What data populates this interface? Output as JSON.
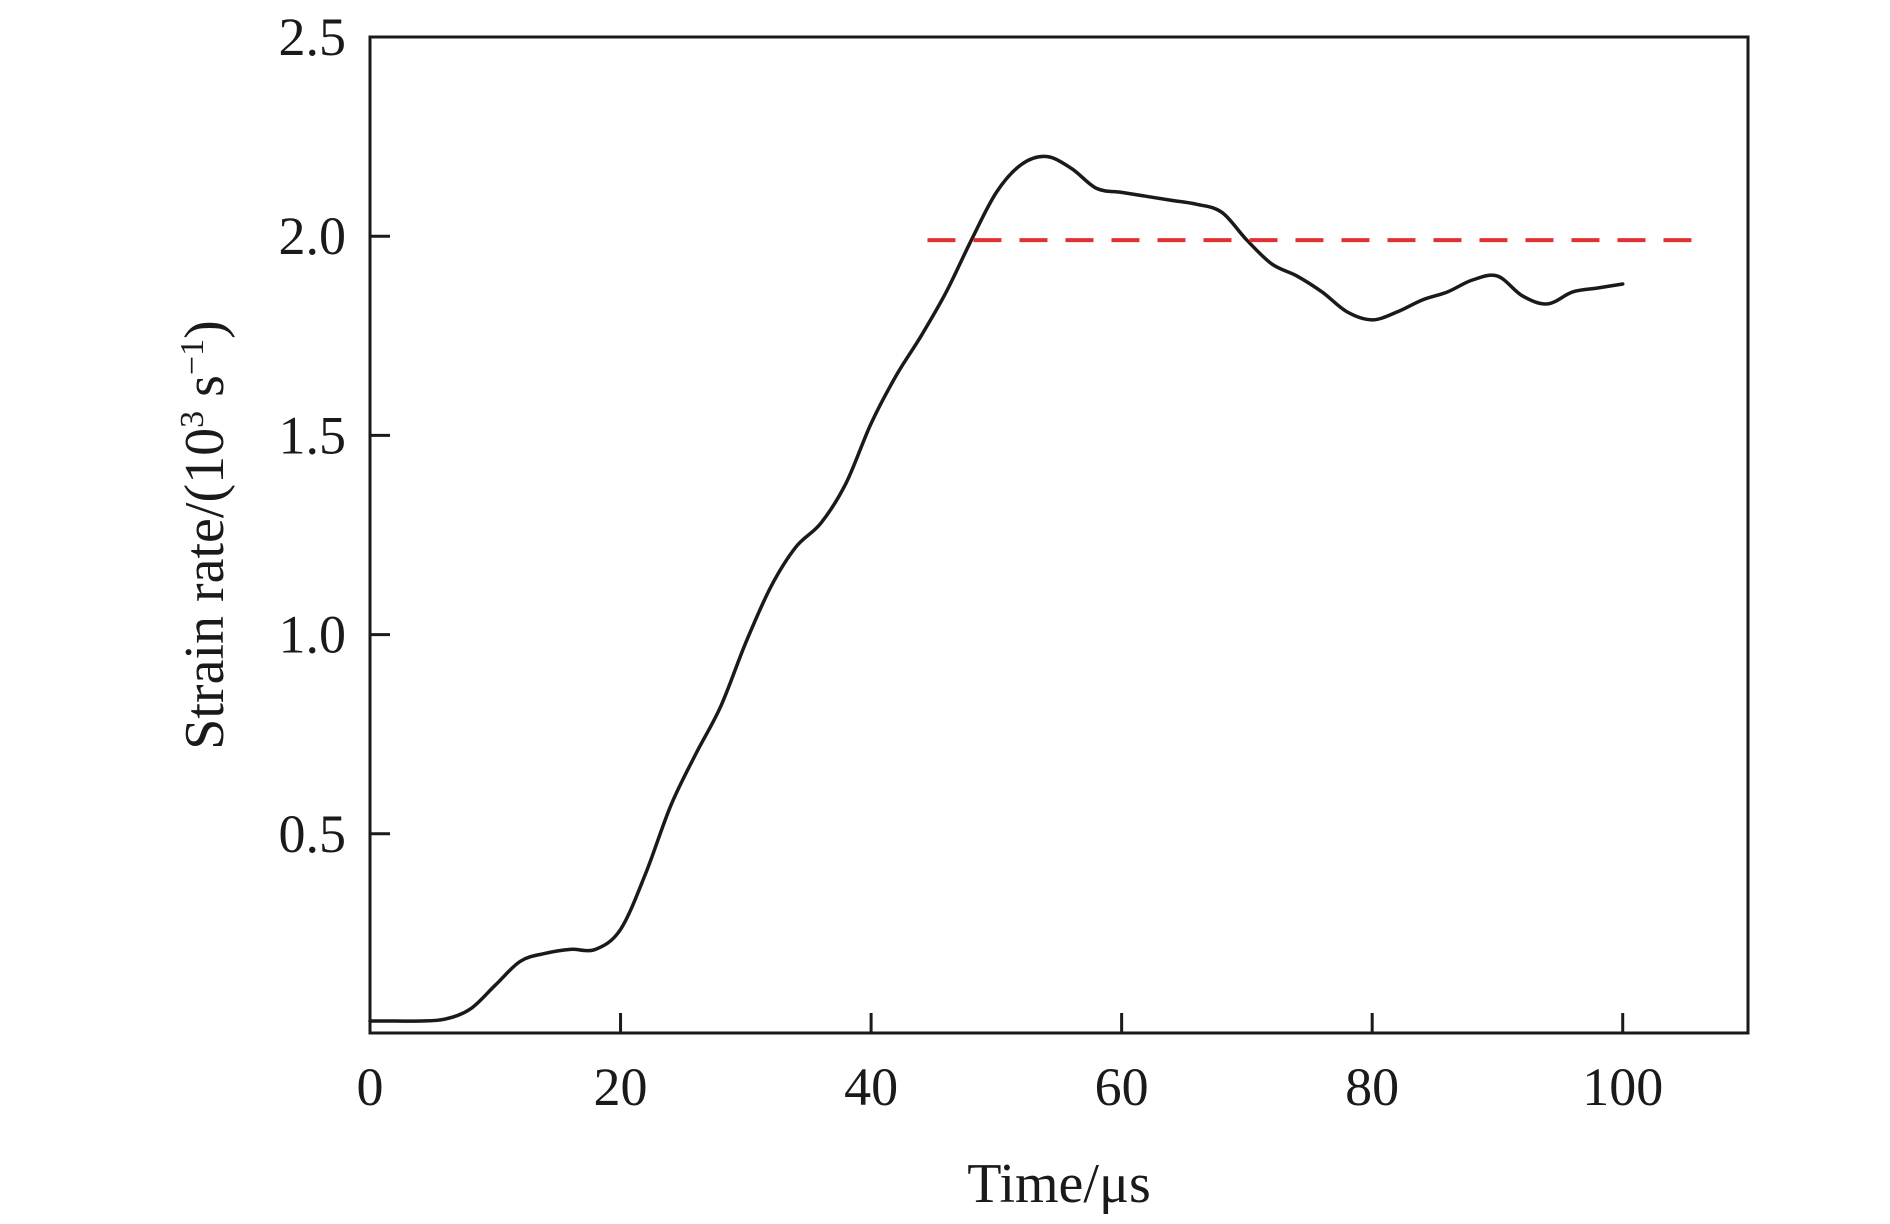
{
  "chart_data": {
    "type": "line",
    "title": "",
    "xlabel": "Time/μs",
    "ylabel": {
      "prefix": "Strain rate/(10",
      "exp1": "3",
      "middle": " s",
      "exp2": "−1",
      "suffix": ")"
    },
    "xlim": [
      0,
      110
    ],
    "ylim": [
      0,
      2.5
    ],
    "x_ticks": [
      0,
      20,
      40,
      60,
      80,
      100
    ],
    "x_tick_labels": [
      "0",
      "20",
      "40",
      "60",
      "80",
      "100"
    ],
    "y_ticks": [
      0.5,
      1.0,
      1.5,
      2.0,
      2.5
    ],
    "y_tick_labels": [
      "0.5",
      "1.0",
      "1.5",
      "2.0",
      "2.5"
    ],
    "grid": false,
    "legend": "none",
    "series": [
      {
        "style": "solid",
        "color": "#1a1a1a",
        "x": [
          0,
          2,
          4,
          6,
          8,
          10,
          12,
          14,
          16,
          18,
          20,
          22,
          24,
          26,
          28,
          30,
          32,
          34,
          36,
          38,
          40,
          42,
          44,
          46,
          48,
          50,
          52,
          54,
          56,
          58,
          60,
          62,
          64,
          66,
          68,
          70,
          72,
          74,
          76,
          78,
          80,
          82,
          84,
          86,
          88,
          90,
          92,
          94,
          96,
          98,
          100
        ],
        "y": [
          0.03,
          0.03,
          0.03,
          0.035,
          0.06,
          0.12,
          0.18,
          0.2,
          0.21,
          0.21,
          0.26,
          0.4,
          0.57,
          0.7,
          0.82,
          0.98,
          1.12,
          1.22,
          1.28,
          1.38,
          1.53,
          1.65,
          1.75,
          1.86,
          1.99,
          2.11,
          2.18,
          2.2,
          2.17,
          2.12,
          2.11,
          2.1,
          2.09,
          2.08,
          2.06,
          1.99,
          1.93,
          1.9,
          1.86,
          1.81,
          1.79,
          1.81,
          1.84,
          1.86,
          1.89,
          1.9,
          1.85,
          1.83,
          1.86,
          1.87,
          1.88
        ]
      },
      {
        "style": "dashed",
        "color": "#e03030",
        "x": [
          44.5,
          106.5
        ],
        "y": [
          1.99,
          1.99
        ]
      }
    ]
  }
}
